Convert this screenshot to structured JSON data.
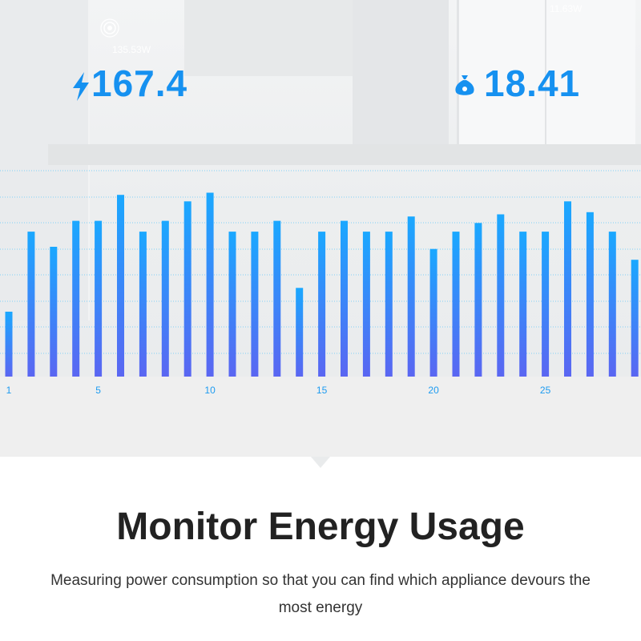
{
  "stats": {
    "power_value": "167.4",
    "cost_value": "18.41",
    "ghost_left": "135.53W",
    "ghost_right": "11.63W"
  },
  "icons": {
    "power": "lightning-bolt-icon",
    "cost": "money-bag-icon",
    "signal": "signal-icon"
  },
  "chart_data": {
    "type": "bar",
    "x_ticks": [
      "1",
      "5",
      "10",
      "15",
      "20",
      "25"
    ],
    "tick_positions": [
      1,
      5,
      10,
      15,
      20,
      25
    ],
    "values": [
      30,
      67,
      60,
      72,
      72,
      84,
      67,
      72,
      81,
      85,
      67,
      67,
      72,
      41,
      67,
      72,
      67,
      67,
      74,
      59,
      67,
      71,
      75,
      67,
      67,
      81,
      76,
      67,
      54
    ],
    "ylim": [
      0,
      100
    ],
    "grid": true,
    "colors": {
      "top": "#1aa8ff",
      "bottom": "#5a66f2",
      "grid": "#7fd0f7",
      "tick": "#1d9bf0"
    }
  },
  "feature": {
    "title": "Monitor Energy Usage",
    "description": "Measuring power consumption so that you can find which appliance devours the most energy"
  }
}
